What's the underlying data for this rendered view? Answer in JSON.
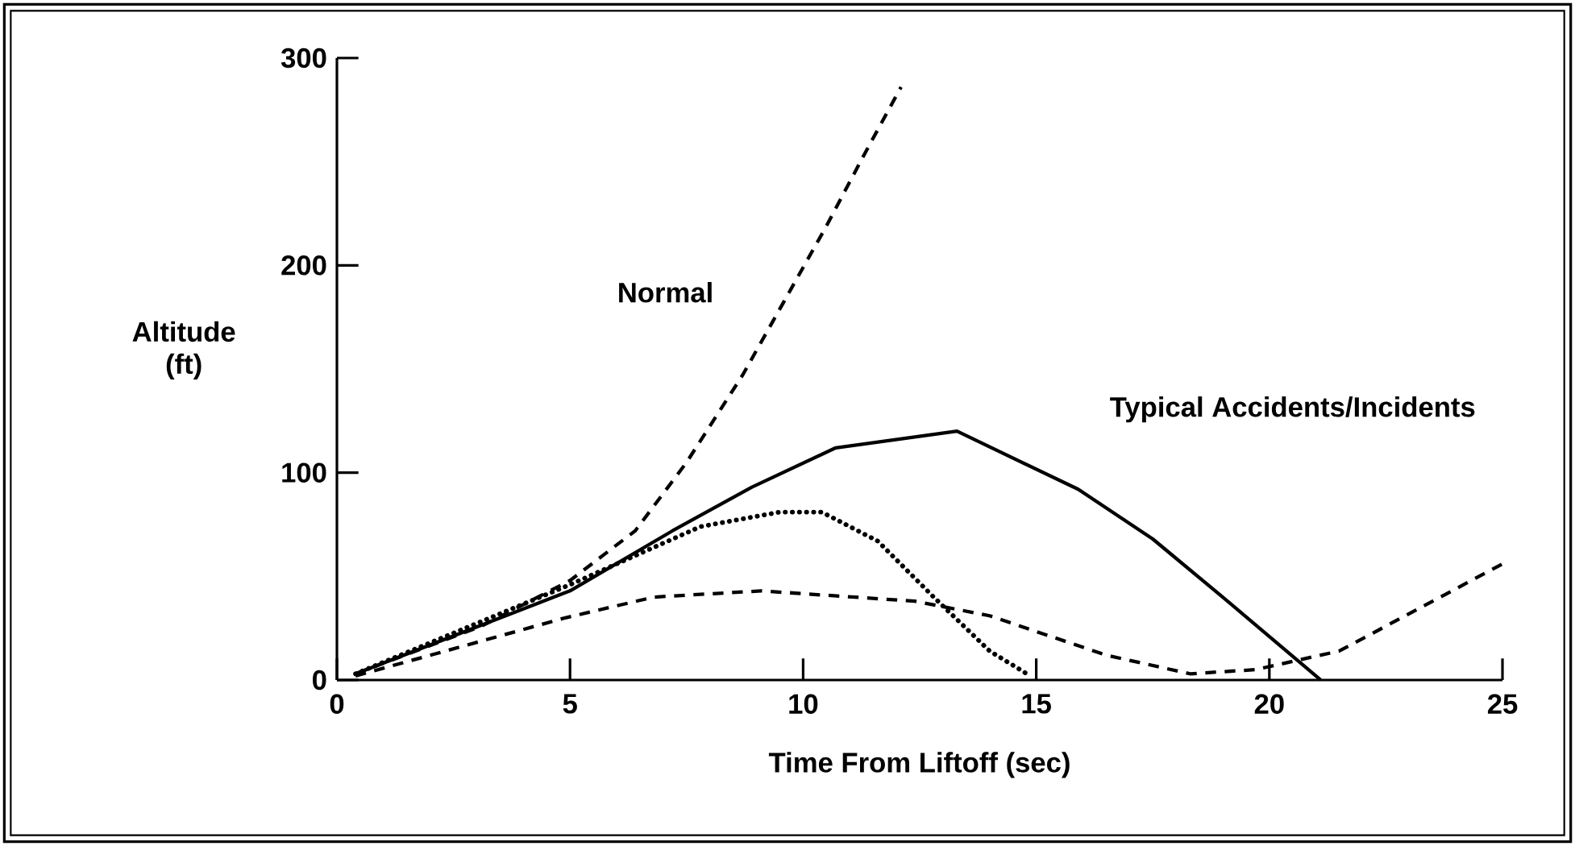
{
  "chart_data": {
    "type": "line",
    "xlabel": "Time From Liftoff (sec)",
    "ylabel": "Altitude (ft)",
    "xlim": [
      0,
      25
    ],
    "ylim": [
      0,
      300
    ],
    "xticks": [
      0,
      5,
      10,
      15,
      20,
      25
    ],
    "yticks": [
      0,
      100,
      200,
      300
    ],
    "grid": false,
    "legend": false,
    "marker": "none",
    "annotations": [
      "Typical Accidents/Incidents"
    ],
    "series": [
      {
        "name": "Normal",
        "color": "#000000",
        "line_style": "dashed",
        "x": [
          0.4,
          3.1,
          5.0,
          6.4,
          7.5,
          8.7,
          9.6,
          10.5,
          11.3,
          12.1
        ],
        "values": [
          3,
          26,
          48,
          72,
          105,
          147,
          183,
          219,
          253,
          286
        ]
      },
      {
        "color": "#000000",
        "line_style": "solid",
        "x": [
          0.4,
          5.0,
          7.2,
          8.9,
          10.7,
          13.3,
          15.9,
          17.5,
          19.0,
          21.1
        ],
        "values": [
          3,
          43,
          72,
          93,
          112,
          120,
          92,
          68,
          40,
          0
        ]
      },
      {
        "color": "#000000",
        "line_style": "dotted",
        "x": [
          0.4,
          5.0,
          7.8,
          9.5,
          10.4,
          11.6,
          12.8,
          14.0,
          14.8
        ],
        "values": [
          3,
          46,
          74,
          81,
          81,
          67,
          40,
          14,
          3
        ]
      },
      {
        "color": "#000000",
        "line_style": "dashed",
        "x": [
          0.4,
          4.9,
          6.8,
          9.1,
          12.4,
          14.0,
          16.5,
          18.3,
          19.7,
          21.5,
          25.0
        ],
        "values": [
          2,
          30,
          40,
          43,
          38,
          31,
          12,
          3,
          5,
          14,
          56
        ]
      }
    ]
  }
}
